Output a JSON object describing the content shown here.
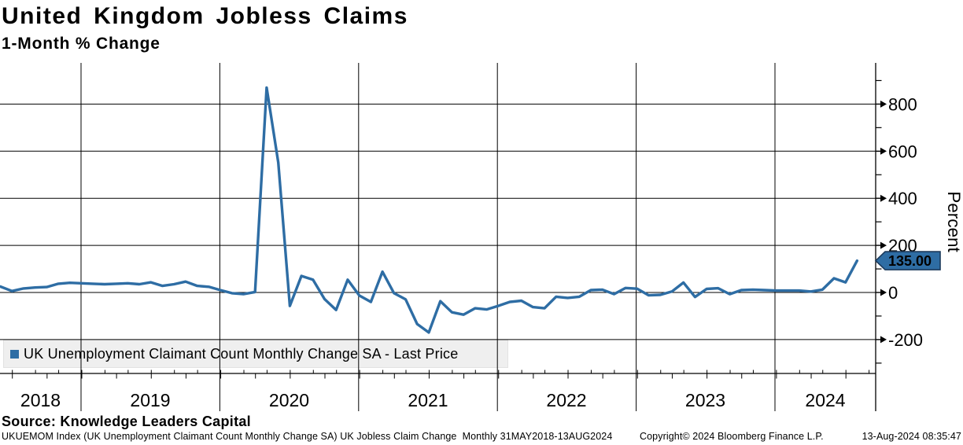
{
  "title": "United Kingdom Jobless Claims",
  "subtitle": "1-Month % Change",
  "legend": {
    "label": "UK Unemployment Claimant Count Monthly Change SA - Last Price",
    "marker_color": "#2e6da4"
  },
  "last_price_badge": "135.00",
  "source_line": "Source: Knowledge Leaders Capital",
  "footer": {
    "left": "UKUEMOM Index (UK Unemployment Claimant Count Monthly Change SA) UK Jobless Claim Change  Monthly 31MAY2018-13AUG2024",
    "center": "Copyright© 2024 Bloomberg Finance L.P.",
    "right": "13-Aug-2024 08:35:47"
  },
  "colors": {
    "line": "#2e6da4",
    "badge_bg": "#2e6da4",
    "badge_border": "#1b3a5c",
    "badge_text": "#ffffff",
    "grid": "#000000",
    "legend_bg": "#efefef"
  },
  "chart_data": {
    "type": "line",
    "title": "United Kingdom Jobless Claims",
    "subtitle": "1-Month % Change",
    "ylabel": "Percent",
    "xlabel": "",
    "grid": true,
    "legend_position": "bottom-left",
    "x_tick_labels": [
      "2018",
      "2019",
      "2020",
      "2021",
      "2022",
      "2023",
      "2024"
    ],
    "y_ticks": [
      -200,
      0,
      200,
      400,
      600,
      800
    ],
    "y_minor_ticks": [
      900,
      700,
      500,
      300,
      100,
      -100,
      -300
    ],
    "ylim": [
      -340,
      975
    ],
    "x_start": "2018-05",
    "x_end": "2024-07",
    "x_frequency": "monthly",
    "series": [
      {
        "name": "UK Unemployment Claimant Count Monthly Change SA - Last Price",
        "last_price": 135.0,
        "values": [
          25,
          6,
          17,
          21,
          23,
          37,
          41,
          39,
          37,
          35,
          37,
          39,
          35,
          43,
          28,
          35,
          46,
          28,
          24,
          10,
          -3,
          -7,
          2,
          870,
          552,
          -57,
          70,
          54,
          -28,
          -74,
          54,
          -13,
          -40,
          88,
          -3,
          -29,
          -134,
          -170,
          -37,
          -84,
          -94,
          -67,
          -72,
          -57,
          -40,
          -35,
          -62,
          -67,
          -18,
          -23,
          -18,
          10,
          12,
          -7,
          19,
          16,
          -12,
          -10,
          4,
          42,
          -19,
          15,
          18,
          -7,
          10,
          12,
          10,
          8,
          8,
          8,
          4,
          12,
          60,
          43,
          135
        ]
      }
    ]
  }
}
